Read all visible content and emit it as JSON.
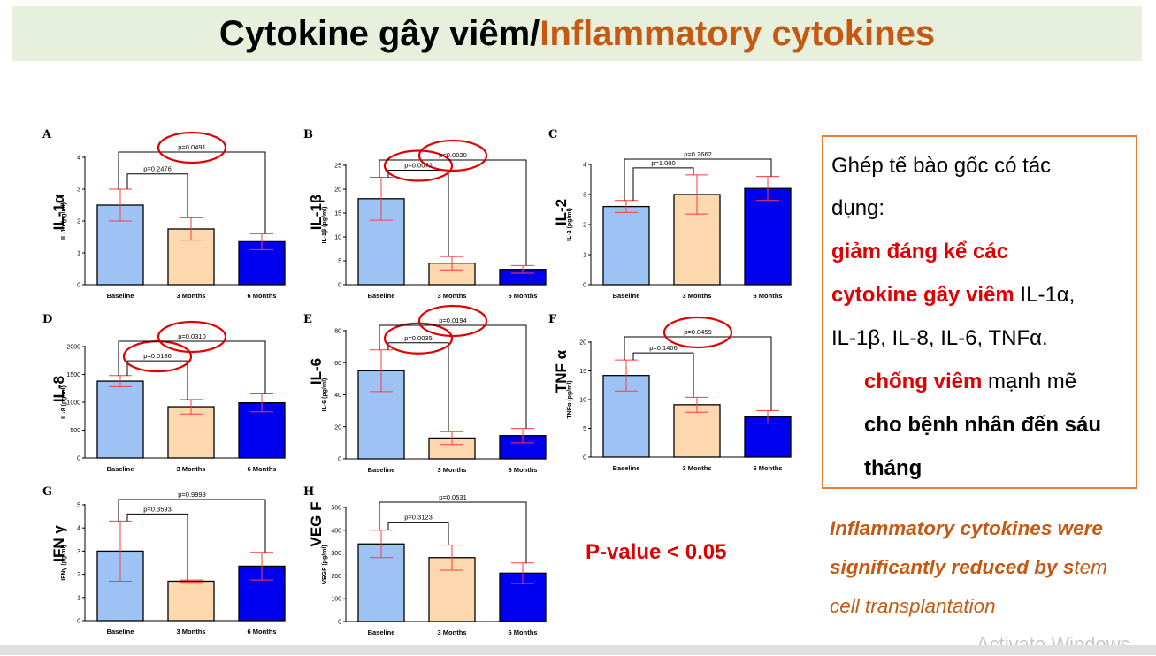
{
  "title": {
    "main": "Cytokine gây viêm/",
    "accent": "Inflammatory cytokines"
  },
  "colors": {
    "baseline": "#9dc3f5",
    "m3": "#fdd7ae",
    "m6": "#0000f0",
    "error": "#ff3b3b",
    "circle": "#e00000",
    "title_bg": "#e6f0dc",
    "title_accent": "#c65911",
    "box_border": "#ed7d31",
    "highlight": "#e00000"
  },
  "chart_data": [
    {
      "panel": "A",
      "type": "bar",
      "side_label": "IL-1α",
      "ylabel": "IL-1α (pg/ml)",
      "categories": [
        "Baseline",
        "3 Months",
        "6 Months"
      ],
      "values": [
        2.5,
        1.75,
        1.35
      ],
      "errors": [
        0.5,
        0.35,
        0.25
      ],
      "ylim": [
        0,
        4
      ],
      "yticks": [
        "0",
        "1",
        "2",
        "3",
        "4"
      ],
      "comparisons": [
        {
          "from": 0,
          "to": 1,
          "label": "p=0.2476",
          "circled": false
        },
        {
          "from": 0,
          "to": 2,
          "label": "p=0.0491",
          "circled": true
        }
      ]
    },
    {
      "panel": "B",
      "type": "bar",
      "side_label": "IL-1β",
      "ylabel": "IL-1β (pg/ml)",
      "categories": [
        "Baseline",
        "3 Months",
        "6 Months"
      ],
      "values": [
        18,
        4.5,
        3.2
      ],
      "errors": [
        4.5,
        1.4,
        0.8
      ],
      "ylim": [
        0,
        25
      ],
      "yticks": [
        "0",
        "5",
        "10",
        "15",
        "20",
        "25"
      ],
      "comparisons": [
        {
          "from": 0,
          "to": 1,
          "label": "p=0.0072",
          "circled": true
        },
        {
          "from": 0,
          "to": 2,
          "label": "p=0.0020",
          "circled": true
        }
      ]
    },
    {
      "panel": "C",
      "type": "bar",
      "side_label": "IL-2",
      "ylabel": "IL-2 (pg/ml)",
      "categories": [
        "Baseline",
        "3 Months",
        "6 Months"
      ],
      "values": [
        2.6,
        3.0,
        3.2
      ],
      "errors": [
        0.2,
        0.65,
        0.4
      ],
      "ylim": [
        0,
        4
      ],
      "yticks": [
        "0",
        "1",
        "2",
        "3",
        "4"
      ],
      "comparisons": [
        {
          "from": 0,
          "to": 1,
          "label": "p=1.000",
          "circled": false
        },
        {
          "from": 0,
          "to": 2,
          "label": "p=0.2662",
          "circled": false
        }
      ]
    },
    {
      "panel": "D",
      "type": "bar",
      "side_label": "IL-8",
      "ylabel": "IL-8 (pg/ml)",
      "categories": [
        "Baseline",
        "3 Months",
        "6 Months"
      ],
      "values": [
        1380,
        920,
        990
      ],
      "errors": [
        100,
        130,
        160
      ],
      "ylim": [
        0,
        2000
      ],
      "yticks": [
        "0",
        "500",
        "1000",
        "1500",
        "2000"
      ],
      "comparisons": [
        {
          "from": 0,
          "to": 1,
          "label": "p=0.0186",
          "circled": true
        },
        {
          "from": 0,
          "to": 2,
          "label": "p=0.0310",
          "circled": true
        }
      ]
    },
    {
      "panel": "E",
      "type": "bar",
      "side_label": "IL-6",
      "ylabel": "IL-6 (pg/ml)",
      "categories": [
        "Baseline",
        "3 Months",
        "6 Months"
      ],
      "values": [
        55,
        13,
        14.5
      ],
      "errors": [
        13,
        4,
        4.5
      ],
      "ylim": [
        0,
        80
      ],
      "yticks": [
        "0",
        "20",
        "40",
        "60",
        "80"
      ],
      "comparisons": [
        {
          "from": 0,
          "to": 1,
          "label": "p=0.0035",
          "circled": true
        },
        {
          "from": 0,
          "to": 2,
          "label": "p=0.0194",
          "circled": true
        }
      ]
    },
    {
      "panel": "F",
      "type": "bar",
      "side_label": "TNF α",
      "ylabel": "TNFα (pg/ml)",
      "categories": [
        "Baseline",
        "3 Months",
        "6 Months"
      ],
      "values": [
        14.2,
        9.1,
        7.0
      ],
      "errors": [
        2.7,
        1.3,
        1.1
      ],
      "ylim": [
        0,
        20
      ],
      "yticks": [
        "0",
        "5",
        "10",
        "15",
        "20"
      ],
      "comparisons": [
        {
          "from": 0,
          "to": 1,
          "label": "p=0.1406",
          "circled": false
        },
        {
          "from": 0,
          "to": 2,
          "label": "p=0.0459",
          "circled": true
        }
      ]
    },
    {
      "panel": "G",
      "type": "bar",
      "side_label": "IFN γ",
      "ylabel": "IFNγ (pg/ml)",
      "categories": [
        "Baseline",
        "3 Months",
        "6 Months"
      ],
      "values": [
        3.0,
        1.7,
        2.35
      ],
      "errors": [
        1.3,
        0.05,
        0.6
      ],
      "ylim": [
        0,
        5
      ],
      "yticks": [
        "0",
        "1",
        "2",
        "3",
        "4",
        "5"
      ],
      "comparisons": [
        {
          "from": 0,
          "to": 1,
          "label": "p=0.3593",
          "circled": false
        },
        {
          "from": 0,
          "to": 2,
          "label": "p=0.9999",
          "circled": false
        }
      ]
    },
    {
      "panel": "H",
      "type": "bar",
      "side_label": "VEG F",
      "ylabel": "VEGF (pg/ml)",
      "categories": [
        "Baseline",
        "3 Months",
        "6 Months"
      ],
      "values": [
        340,
        280,
        212
      ],
      "errors": [
        60,
        55,
        45
      ],
      "ylim": [
        0,
        500
      ],
      "yticks": [
        "0",
        "100",
        "200",
        "300",
        "400",
        "500"
      ],
      "comparisons": [
        {
          "from": 0,
          "to": 1,
          "label": "p=0.3123",
          "circled": false
        },
        {
          "from": 0,
          "to": 2,
          "label": "p=0.0531",
          "circled": false
        }
      ]
    }
  ],
  "p_note": "P-value < 0.05",
  "box": {
    "l1": "Ghép tế bào gốc có tác",
    "l2": "dụng:",
    "l3_bullet": "",
    "l3_red": "giảm đáng kể các",
    "l4_red": "cytokine gây viêm",
    "l4_rest": " IL-1α,",
    "l5": "IL-1β, IL-8, IL-6, TNFα.",
    "l6_bullet": "",
    "l6_red": "chống viêm",
    "l6_rest": " mạnh mẽ",
    "l7_red": "cho bệnh nhân đến sáu",
    "l8_red": "tháng"
  },
  "english": {
    "bold": "Inflammatory cytokines were significantly reduced by s",
    "normal": "tem cell transplantation"
  },
  "watermark": "Activate Windows"
}
